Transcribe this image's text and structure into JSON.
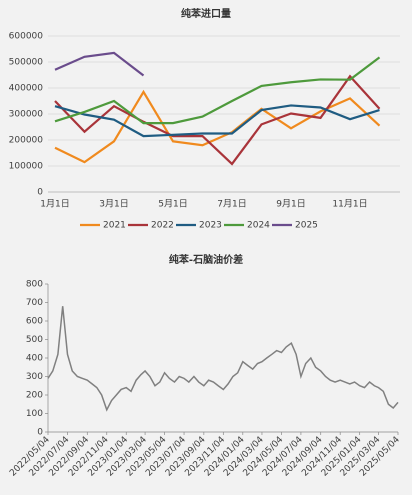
{
  "chart_data": [
    {
      "type": "line",
      "title": "纯苯进口量",
      "categories": [
        "1月1日",
        null,
        "3月1日",
        null,
        "5月1日",
        null,
        "7月1日",
        null,
        "9月1日",
        null,
        "11月1日",
        null
      ],
      "series": [
        {
          "name": "2021",
          "color": "#f08a1e",
          "values": [
            170000,
            115000,
            195000,
            385000,
            195000,
            180000,
            230000,
            320000,
            245000,
            310000,
            360000,
            255000
          ]
        },
        {
          "name": "2022",
          "color": "#a9343a",
          "values": [
            350000,
            232000,
            330000,
            270000,
            215000,
            215000,
            108000,
            260000,
            302000,
            285000,
            445000,
            320000
          ]
        },
        {
          "name": "2023",
          "color": "#1f5c82",
          "values": [
            330000,
            298000,
            278000,
            215000,
            220000,
            225000,
            225000,
            315000,
            333000,
            325000,
            280000,
            315000
          ]
        },
        {
          "name": "2024",
          "color": "#4e9a3c",
          "values": [
            272000,
            308000,
            350000,
            265000,
            265000,
            290000,
            350000,
            408000,
            422000,
            433000,
            432000,
            518000
          ]
        },
        {
          "name": "2025",
          "color": "#6a4c8c",
          "values": [
            470000,
            520000,
            535000,
            448000,
            null,
            null,
            null,
            null,
            null,
            null,
            null,
            null
          ]
        }
      ],
      "ylim": [
        0,
        600000
      ],
      "yticks": [
        0,
        100000,
        200000,
        300000,
        400000,
        500000,
        600000
      ],
      "grid": true,
      "legend": "bottom"
    },
    {
      "type": "timeseries",
      "title": "纯苯-石脑油价差",
      "color": "#808080",
      "x": [
        "2022/05/04",
        "2022/05/19",
        "2022/06/04",
        "2022/06/19",
        "2022/07/04",
        "2022/07/19",
        "2022/08/04",
        "2022/08/19",
        "2022/09/04",
        "2022/09/19",
        "2022/10/04",
        "2022/10/19",
        "2022/11/04",
        "2022/11/19",
        "2022/12/04",
        "2022/12/19",
        "2023/01/04",
        "2023/01/19",
        "2023/02/04",
        "2023/02/19",
        "2023/03/04",
        "2023/03/19",
        "2023/04/04",
        "2023/04/19",
        "2023/05/04",
        "2023/05/19",
        "2023/06/04",
        "2023/06/19",
        "2023/07/04",
        "2023/07/19",
        "2023/08/04",
        "2023/08/19",
        "2023/09/04",
        "2023/09/19",
        "2023/10/04",
        "2023/10/19",
        "2023/11/04",
        "2023/11/19",
        "2023/12/04",
        "2023/12/19",
        "2024/01/04",
        "2024/01/19",
        "2024/02/04",
        "2024/02/19",
        "2024/03/04",
        "2024/03/19",
        "2024/04/04",
        "2024/04/19",
        "2024/05/04",
        "2024/05/19",
        "2024/06/04",
        "2024/06/19",
        "2024/07/04",
        "2024/07/19",
        "2024/08/04",
        "2024/08/19",
        "2024/09/04",
        "2024/09/19",
        "2024/10/04",
        "2024/10/19",
        "2024/11/04",
        "2024/11/19",
        "2024/12/04",
        "2024/12/19",
        "2025/01/04",
        "2025/01/19",
        "2025/02/04",
        "2025/02/19",
        "2025/03/04",
        "2025/03/19",
        "2025/04/04",
        "2025/04/19",
        "2025/05/04"
      ],
      "values": [
        290,
        330,
        420,
        680,
        420,
        330,
        300,
        290,
        280,
        260,
        240,
        200,
        120,
        170,
        200,
        230,
        240,
        220,
        280,
        310,
        330,
        300,
        250,
        270,
        320,
        290,
        270,
        300,
        290,
        270,
        300,
        270,
        250,
        280,
        270,
        250,
        230,
        260,
        300,
        320,
        380,
        360,
        340,
        370,
        380,
        400,
        420,
        440,
        430,
        460,
        480,
        420,
        300,
        370,
        400,
        350,
        330,
        300,
        280,
        270,
        280,
        270,
        260,
        270,
        250,
        240,
        270,
        250,
        240,
        220,
        150,
        130,
        160
      ],
      "xlim": [
        "2022/05/04",
        "2025/05/04"
      ],
      "xticks": [
        "2022/05/04",
        "2022/07/04",
        "2022/09/04",
        "2022/11/04",
        "2023/01/04",
        "2023/03/04",
        "2023/05/04",
        "2023/07/04",
        "2023/09/04",
        "2023/11/04",
        "2024/01/04",
        "2024/03/04",
        "2024/05/04",
        "2024/07/04",
        "2024/09/04",
        "2024/11/04",
        "2025/01/04",
        "2025/03/04",
        "2025/05/04"
      ],
      "ylim": [
        0,
        800
      ],
      "yticks": [
        0,
        100,
        200,
        300,
        400,
        500,
        600,
        700,
        800
      ],
      "grid": false
    }
  ]
}
